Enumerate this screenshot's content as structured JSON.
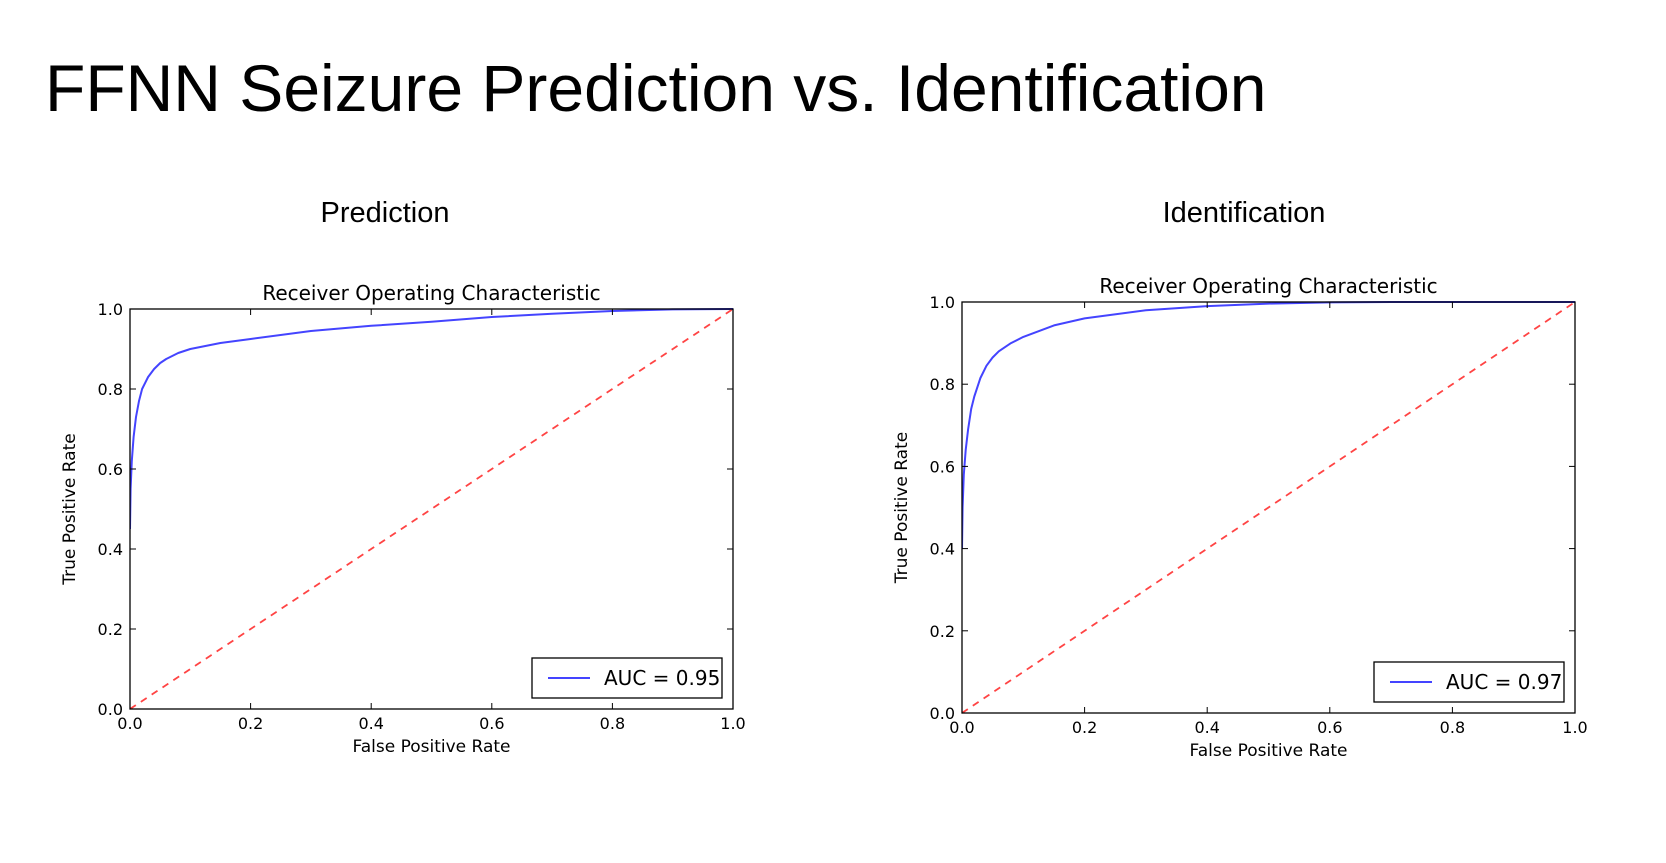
{
  "slide": {
    "title": "FFNN Seizure Prediction vs. Identification"
  },
  "panels": [
    {
      "heading": "Prediction"
    },
    {
      "heading": "Identification"
    }
  ],
  "chart_data": [
    {
      "type": "line",
      "title": "Receiver Operating Characteristic",
      "xlabel": "False Positive Rate",
      "ylabel": "True Positive Rate",
      "xlim": [
        0,
        1
      ],
      "ylim": [
        0,
        1
      ],
      "xticks": [
        "0.0",
        "0.2",
        "0.4",
        "0.6",
        "0.8",
        "1.0"
      ],
      "yticks": [
        "0.0",
        "0.2",
        "0.4",
        "0.6",
        "0.8",
        "1.0"
      ],
      "grid": false,
      "legend_position": "lower-right",
      "series": [
        {
          "name": "AUC = 0.95",
          "color": "#4444ff",
          "style": "solid",
          "x": [
            0,
            0.001,
            0.003,
            0.006,
            0.01,
            0.015,
            0.02,
            0.03,
            0.04,
            0.05,
            0.06,
            0.08,
            0.1,
            0.15,
            0.2,
            0.3,
            0.4,
            0.5,
            0.6,
            0.7,
            0.8,
            0.9,
            1.0
          ],
          "y": [
            0.45,
            0.55,
            0.62,
            0.68,
            0.73,
            0.77,
            0.8,
            0.83,
            0.85,
            0.865,
            0.875,
            0.89,
            0.9,
            0.915,
            0.925,
            0.945,
            0.958,
            0.968,
            0.98,
            0.988,
            0.995,
            0.999,
            1.0
          ]
        },
        {
          "color": "#ff4444",
          "style": "dashed",
          "x": [
            0,
            1
          ],
          "y": [
            0,
            1
          ]
        }
      ]
    },
    {
      "type": "line",
      "title": "Receiver Operating Characteristic",
      "xlabel": "False Positive Rate",
      "ylabel": "True Positive Rate",
      "xlim": [
        0,
        1
      ],
      "ylim": [
        0,
        1
      ],
      "xticks": [
        "0.0",
        "0.2",
        "0.4",
        "0.6",
        "0.8",
        "1.0"
      ],
      "yticks": [
        "0.0",
        "0.2",
        "0.4",
        "0.6",
        "0.8",
        "1.0"
      ],
      "grid": false,
      "legend_position": "lower-right",
      "series": [
        {
          "name": "AUC = 0.97",
          "color": "#4444ff",
          "style": "solid",
          "x": [
            0,
            0.001,
            0.003,
            0.006,
            0.01,
            0.015,
            0.02,
            0.03,
            0.04,
            0.05,
            0.06,
            0.08,
            0.1,
            0.15,
            0.2,
            0.3,
            0.4,
            0.5,
            0.6,
            0.7,
            1.0
          ],
          "y": [
            0.4,
            0.5,
            0.58,
            0.64,
            0.69,
            0.74,
            0.77,
            0.815,
            0.845,
            0.865,
            0.88,
            0.9,
            0.915,
            0.943,
            0.96,
            0.98,
            0.99,
            0.996,
            0.999,
            1.0,
            1.0
          ]
        },
        {
          "color": "#ff4444",
          "style": "dashed",
          "x": [
            0,
            1
          ],
          "y": [
            0,
            1
          ]
        }
      ]
    }
  ]
}
